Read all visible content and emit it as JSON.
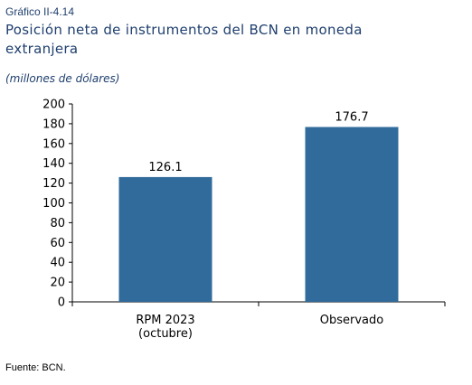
{
  "figure": {
    "label": "Gráfico II-4.14",
    "title": "Posición neta de instrumentos del BCN en moneda extranjera",
    "subtitle": "(millones de dólares)",
    "source": "Fuente: BCN."
  },
  "chart_data": {
    "type": "bar",
    "categories": [
      [
        "RPM 2023",
        "(octubre)"
      ],
      [
        "Observado"
      ]
    ],
    "values": [
      126.1,
      176.7
    ],
    "value_labels": [
      "126.1",
      "176.7"
    ],
    "ylim": [
      0,
      200
    ],
    "yticks": [
      0,
      20,
      40,
      60,
      80,
      100,
      120,
      140,
      160,
      180,
      200
    ],
    "grid": false,
    "legend": "none",
    "bar_color": "#306b9b",
    "title_color": "#1f3f6e"
  }
}
